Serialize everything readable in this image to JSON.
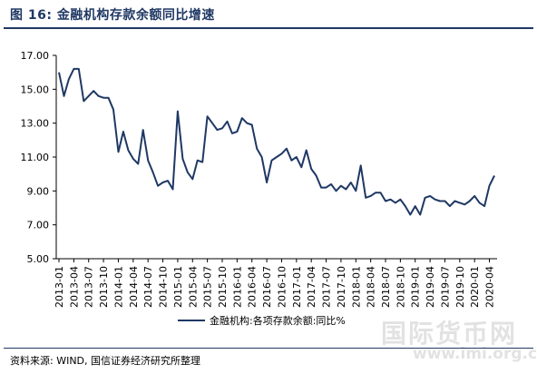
{
  "figure": {
    "title": "图 16:  金融机构存款余额同比增速",
    "source": "资料来源:  WIND,  国信证券经济研究所整理",
    "watermark": "国际货币网",
    "watermark_url": "www.imi.org.cn",
    "line_color": "#1f3864"
  },
  "chart_data": {
    "type": "line",
    "title": "",
    "xlabel": "",
    "ylabel": "",
    "ylim": [
      5.0,
      17.0
    ],
    "y_ticks": [
      "5.00",
      "7.00",
      "9.00",
      "11.00",
      "13.00",
      "15.00",
      "17.00"
    ],
    "x_tick_labels": [
      "2013-01",
      "2013-04",
      "2013-07",
      "2013-10",
      "2014-01",
      "2014-04",
      "2014-07",
      "2014-10",
      "2015-01",
      "2015-04",
      "2015-07",
      "2015-10",
      "2016-01",
      "2016-04",
      "2016-07",
      "2016-10",
      "2017-01",
      "2017-04",
      "2017-07",
      "2017-10",
      "2018-01",
      "2018-04",
      "2018-07",
      "2018-10",
      "2019-01",
      "2019-04",
      "2019-07",
      "2019-10",
      "2020-01",
      "2020-04"
    ],
    "grid": false,
    "legend_position": "bottom-center",
    "series": [
      {
        "name": "金融机构:各项存款余额:同比%",
        "color": "#1f3864",
        "start": "2013-01",
        "frequency": "monthly",
        "values": [
          16.0,
          14.6,
          15.6,
          16.2,
          16.2,
          14.3,
          14.6,
          14.9,
          14.6,
          14.5,
          14.5,
          13.8,
          11.3,
          12.5,
          11.4,
          10.9,
          10.6,
          12.6,
          10.8,
          10.1,
          9.3,
          9.5,
          9.6,
          9.1,
          13.7,
          10.9,
          10.1,
          9.7,
          10.8,
          10.7,
          13.4,
          13.0,
          12.6,
          12.7,
          13.1,
          12.4,
          12.5,
          13.3,
          13.0,
          12.9,
          11.5,
          11.0,
          9.5,
          10.8,
          11.0,
          11.2,
          11.5,
          10.8,
          11.0,
          10.4,
          11.4,
          10.3,
          9.9,
          9.2,
          9.2,
          9.4,
          9.0,
          9.3,
          9.1,
          9.5,
          9.0,
          10.5,
          8.6,
          8.7,
          8.9,
          8.9,
          8.4,
          8.5,
          8.3,
          8.5,
          8.1,
          7.6,
          8.1,
          7.6,
          8.6,
          8.7,
          8.5,
          8.4,
          8.4,
          8.1,
          8.4,
          8.3,
          8.2,
          8.4,
          8.7,
          8.3,
          8.1,
          9.3,
          9.9
        ]
      }
    ]
  }
}
